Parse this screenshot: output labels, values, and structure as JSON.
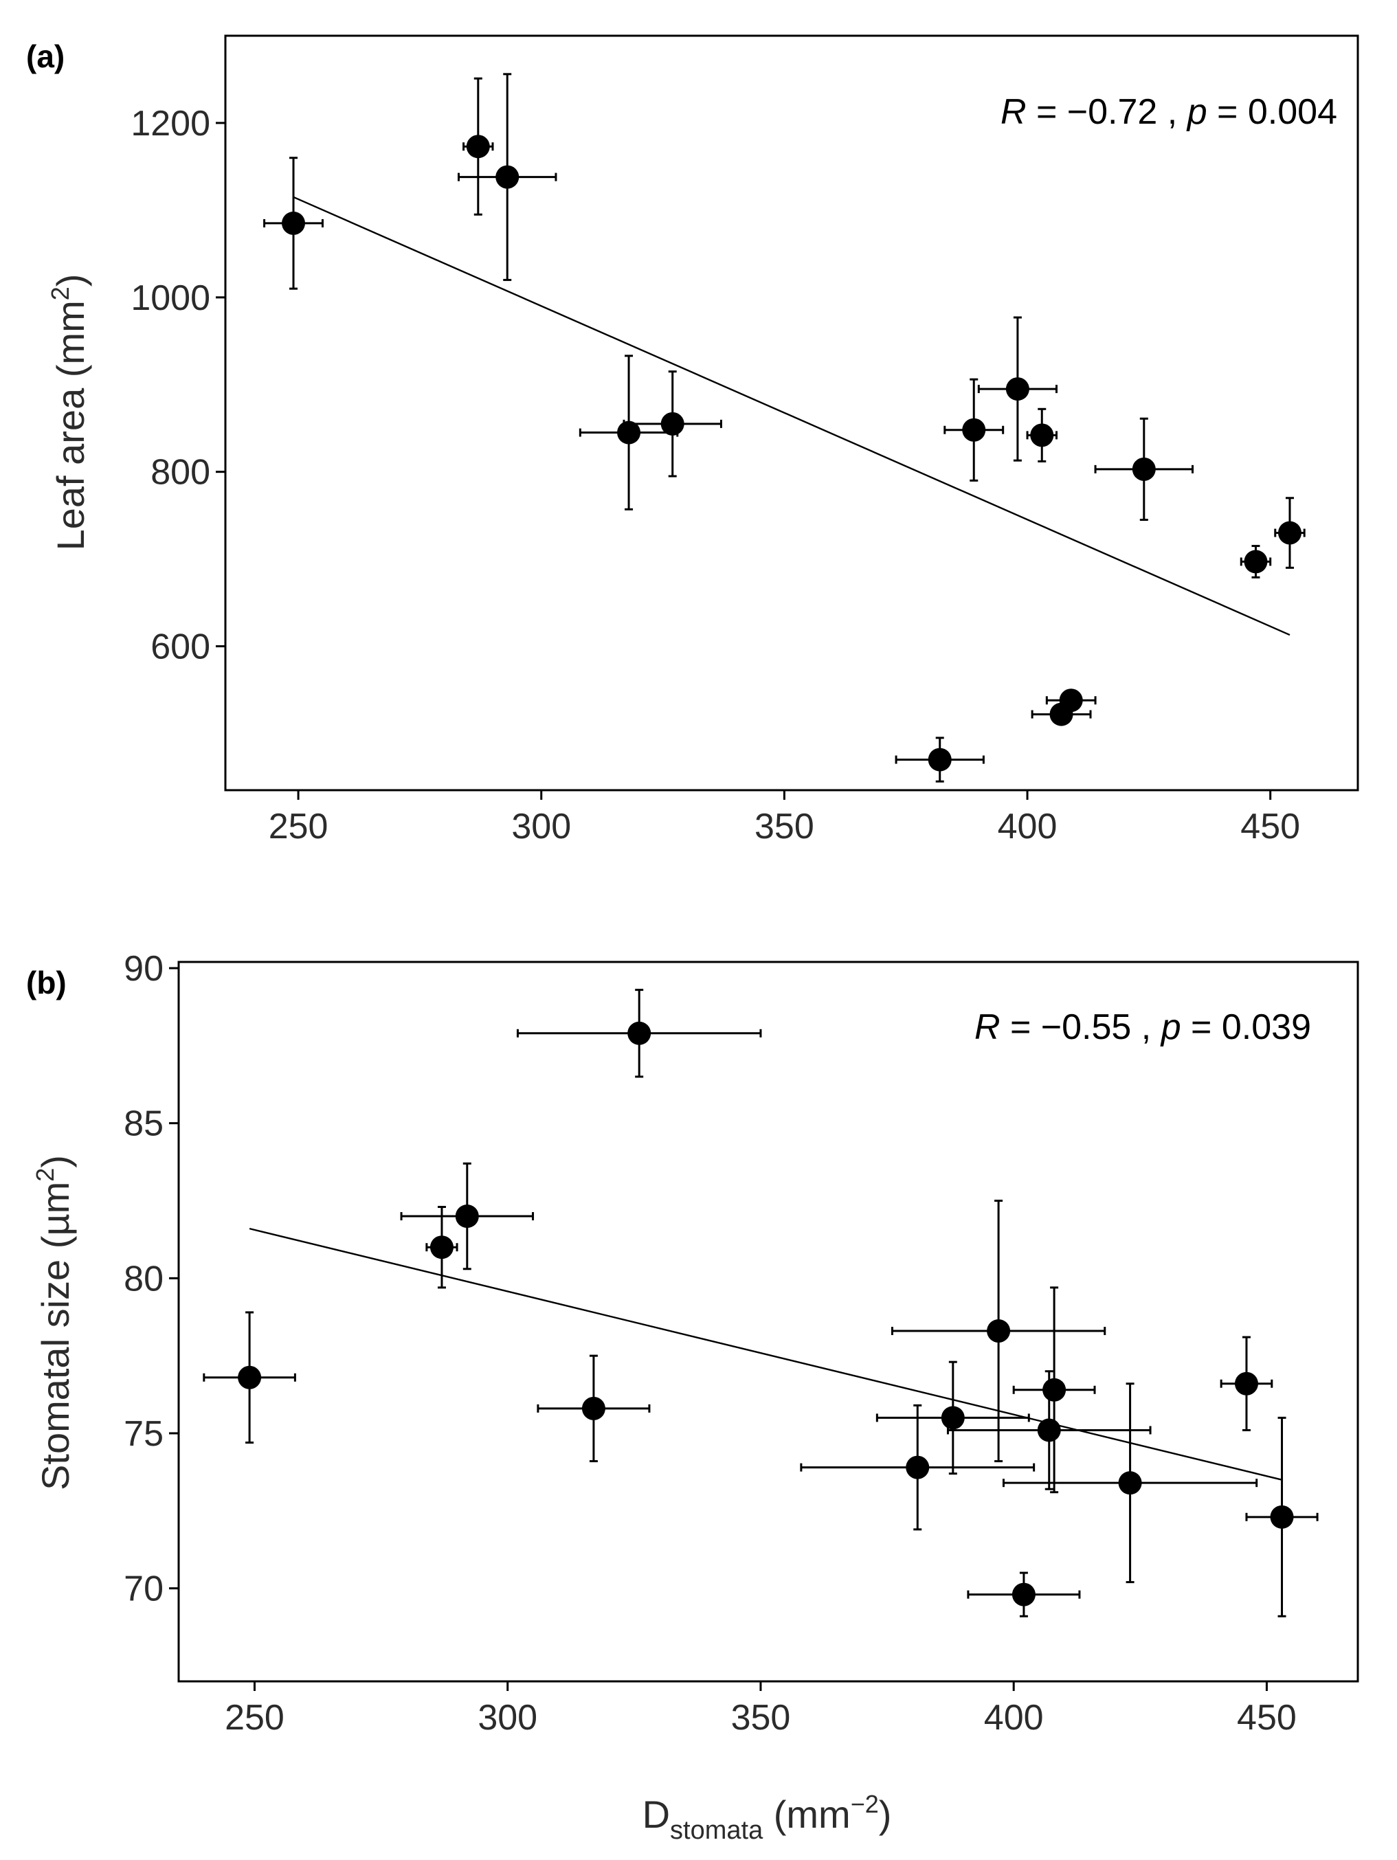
{
  "chart_data": [
    {
      "type": "scatter",
      "panel_label": "(a)",
      "title": "",
      "xlabel": "",
      "ylabel": {
        "prefix": "Leaf area (mm",
        "sup": "2",
        "suffix": ")"
      },
      "xlim": [
        235,
        468
      ],
      "ylim": [
        435,
        1300
      ],
      "xticks": [
        250,
        300,
        350,
        400,
        450
      ],
      "yticks": [
        600,
        800,
        1000,
        1200
      ],
      "annotation": {
        "r_label": "R",
        "r_text": " = −0.72 , ",
        "p_label": "p",
        "p_text": " = 0.004"
      },
      "fit_line": {
        "x": [
          249,
          454
        ],
        "y": [
          1115,
          613
        ]
      },
      "points": [
        {
          "x": 249,
          "y": 1085,
          "xerr": 6,
          "yerr": 75
        },
        {
          "x": 287,
          "y": 1173,
          "xerr": 3,
          "yerr": 78
        },
        {
          "x": 293,
          "y": 1138,
          "xerr": 10,
          "yerr": 118
        },
        {
          "x": 318,
          "y": 845,
          "xerr": 10,
          "yerr": 88
        },
        {
          "x": 327,
          "y": 855,
          "xerr": 10,
          "yerr": 60
        },
        {
          "x": 382,
          "y": 470,
          "xerr": 9,
          "yerr": 25
        },
        {
          "x": 389,
          "y": 848,
          "xerr": 6,
          "yerr": 58
        },
        {
          "x": 398,
          "y": 895,
          "xerr": 8,
          "yerr": 82
        },
        {
          "x": 403,
          "y": 842,
          "xerr": 3,
          "yerr": 30
        },
        {
          "x": 407,
          "y": 522,
          "xerr": 6,
          "yerr": 6
        },
        {
          "x": 409,
          "y": 538,
          "xerr": 5,
          "yerr": 6
        },
        {
          "x": 424,
          "y": 803,
          "xerr": 10,
          "yerr": 58
        },
        {
          "x": 447,
          "y": 697,
          "xerr": 3,
          "yerr": 18
        },
        {
          "x": 454,
          "y": 730,
          "xerr": 3,
          "yerr": 40
        }
      ]
    },
    {
      "type": "scatter",
      "panel_label": "(b)",
      "title": "",
      "xlabel": {
        "prefix": "D",
        "sub": "stomata",
        "mid": " (mm",
        "sup": "−2",
        "suffix": ")"
      },
      "ylabel": {
        "prefix": "Stomatal size (µm",
        "sup": "2",
        "suffix": ")"
      },
      "xlim": [
        235,
        468
      ],
      "ylim": [
        67,
        90.2
      ],
      "xticks": [
        250,
        300,
        350,
        400,
        450
      ],
      "yticks": [
        70,
        75,
        80,
        85,
        90
      ],
      "annotation": {
        "r_label": "R",
        "r_text": " = −0.55 , ",
        "p_label": "p",
        "p_text": " = 0.039"
      },
      "fit_line": {
        "x": [
          249,
          453
        ],
        "y": [
          81.6,
          73.5
        ]
      },
      "points": [
        {
          "x": 249,
          "y": 76.8,
          "xerr": 9,
          "yerr": 2.1
        },
        {
          "x": 287,
          "y": 81.0,
          "xerr": 3,
          "yerr": 1.3
        },
        {
          "x": 292,
          "y": 82.0,
          "xerr": 13,
          "yerr": 1.7
        },
        {
          "x": 317,
          "y": 75.8,
          "xerr": 11,
          "yerr": 1.7
        },
        {
          "x": 326,
          "y": 87.9,
          "xerr": 24,
          "yerr": 1.4
        },
        {
          "x": 381,
          "y": 73.9,
          "xerr": 23,
          "yerr": 2.0
        },
        {
          "x": 388,
          "y": 75.5,
          "xerr": 15,
          "yerr": 1.8
        },
        {
          "x": 397,
          "y": 78.3,
          "xerr": 21,
          "yerr": 4.2
        },
        {
          "x": 402,
          "y": 69.8,
          "xerr": 11,
          "yerr": 0.7
        },
        {
          "x": 407,
          "y": 75.1,
          "xerr": 20,
          "yerr": 1.9
        },
        {
          "x": 408,
          "y": 76.4,
          "xerr": 8,
          "yerr": 3.3
        },
        {
          "x": 423,
          "y": 73.4,
          "xerr": 25,
          "yerr": 3.2
        },
        {
          "x": 446,
          "y": 76.6,
          "xerr": 5,
          "yerr": 1.5
        },
        {
          "x": 453,
          "y": 72.3,
          "xerr": 7,
          "yerr": 3.2
        }
      ]
    }
  ]
}
